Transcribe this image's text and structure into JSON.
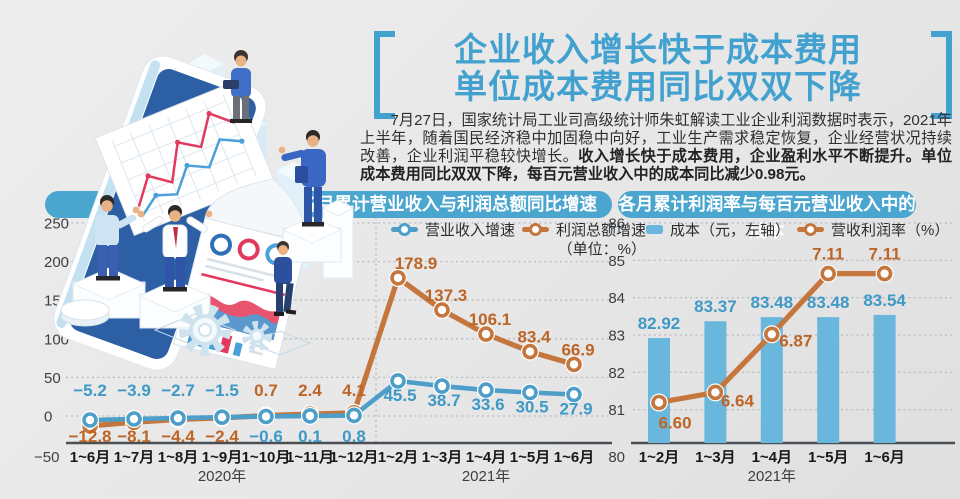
{
  "page": {
    "background": "#e8e8e8",
    "accent_blue": "#42a1cf"
  },
  "header": {
    "title_line1": "企业收入增长快于成本费用",
    "title_line2": "单位成本费用同比双双下降",
    "paragraph_normal": "7月27日，国家统计局工业司高级统计师朱虹解读工业企业利润数据时表示，2021年上半年，随着国民经济稳中加固稳中向好，工业生产需求稳定恢复，企业经营状况持续改善，企业利润平稳较快增长。",
    "paragraph_bold": "收入增长快于成本费用，企业盈利水平不断提升。单位成本费用同比双双下降，每百元营业收入中的成本同比减少0.98元。"
  },
  "chart_data": [
    {
      "type": "line",
      "title": "各月累计营业收入与利润总额同比增速",
      "unit_note": "（单位：%）",
      "categories": [
        "1~6月",
        "1~7月",
        "1~8月",
        "1~9月",
        "1~10月",
        "1~11月",
        "1~12月",
        "1~2月",
        "1~3月",
        "1~4月",
        "1~5月",
        "1~6月"
      ],
      "year_labels": [
        {
          "text": "2020年",
          "category_index": 3
        },
        {
          "text": "2021年",
          "category_index": 9
        }
      ],
      "series": [
        {
          "name": "营业收入增速",
          "color": "#4d9ec9",
          "label_color": "#3e99c7",
          "values": [
            -5.2,
            -3.9,
            -2.7,
            -1.5,
            -0.6,
            0.1,
            0.8,
            45.5,
            38.7,
            33.6,
            30.5,
            27.9
          ],
          "value_labels": [
            "−5.2",
            "−3.9",
            "−2.7",
            "−1.5",
            "−0.6",
            "0.1",
            "0.8",
            "45.5",
            "38.7",
            "33.6",
            "30.5",
            "27.9"
          ]
        },
        {
          "name": "利润总额增速",
          "color": "#c4763c",
          "label_color": "#bd6527",
          "values": [
            -12.8,
            -8.1,
            -4.4,
            -2.4,
            0.7,
            2.4,
            4.1,
            178.9,
            137.3,
            106.1,
            83.4,
            66.9
          ],
          "value_labels": [
            "−12.8",
            "−8.1",
            "−4.4",
            "−2.4",
            "0.7",
            "2.4",
            "4.1",
            "178.9",
            "137.3",
            "106.1",
            "83.4",
            "66.9"
          ]
        }
      ],
      "ylim": [
        -50,
        250
      ],
      "yticks": [
        250,
        200,
        150,
        100,
        50,
        0,
        -50
      ],
      "grid": "dotted-horizontal",
      "period_separator_between": [
        "1~12月",
        "1~2月"
      ]
    },
    {
      "type": "bar+line",
      "title": "各月累计利润率与每百元营业收入中的成本",
      "categories": [
        "1~2月",
        "1~3月",
        "1~4月",
        "1~5月",
        "1~6月"
      ],
      "year_labels": [
        {
          "text": "2021年",
          "category_index": 2
        }
      ],
      "bar_series": {
        "name": "成本（元，左轴）",
        "color": "#69b7dc",
        "label_color": "#3e99c7",
        "values": [
          82.92,
          83.37,
          83.48,
          83.48,
          83.54
        ],
        "value_labels": [
          "82.92",
          "83.37",
          "83.48",
          "83.48",
          "83.54"
        ]
      },
      "line_series": {
        "name": "营收利润率（%）",
        "color": "#c4763c",
        "label_color": "#bd6527",
        "values": [
          6.6,
          6.64,
          6.87,
          7.11,
          7.11
        ],
        "value_labels": [
          "6.60",
          "6.64",
          "6.87",
          "7.11",
          "7.11"
        ]
      },
      "ylim_left": [
        80,
        86
      ],
      "yticks_left": [
        86,
        85,
        84,
        83,
        82,
        81,
        80
      ],
      "line_axis_range_est": [
        6.44,
        7.31
      ],
      "grid": "dotted-horizontal"
    }
  ]
}
